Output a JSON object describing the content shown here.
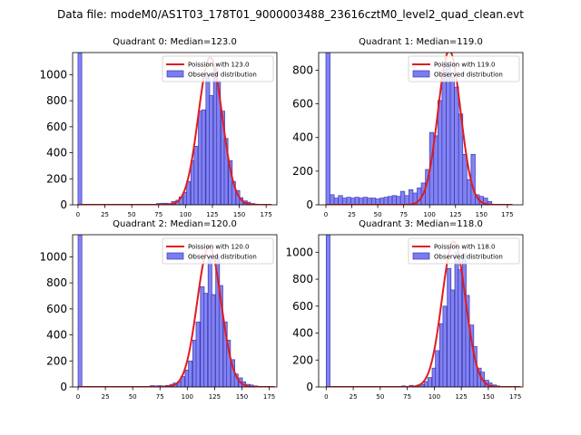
{
  "figure": {
    "suptitle": "Data file: modeM0/AS1T03_178T01_9000003488_23616cztM0_level2_quad_clean.evt"
  },
  "chart_data": [
    {
      "type": "bar",
      "title": "Quadrant 0: Median=123.0",
      "median": 123.0,
      "xlim": [
        -5,
        185
      ],
      "ylim": [
        0,
        1170
      ],
      "xticks": [
        0,
        25,
        50,
        75,
        100,
        125,
        150,
        175
      ],
      "yticks": [
        0,
        200,
        400,
        600,
        800,
        1000
      ],
      "bin_width": 3.5,
      "hist_bins": [
        [
          0,
          1170
        ],
        [
          73,
          10
        ],
        [
          77,
          12
        ],
        [
          80,
          12
        ],
        [
          84,
          10
        ],
        [
          87,
          25
        ],
        [
          91,
          35
        ],
        [
          94,
          60
        ],
        [
          98,
          95
        ],
        [
          101,
          180
        ],
        [
          105,
          340
        ],
        [
          108,
          450
        ],
        [
          112,
          720
        ],
        [
          115,
          730
        ],
        [
          119,
          1000
        ],
        [
          122,
          840
        ],
        [
          126,
          1050
        ],
        [
          129,
          950
        ],
        [
          133,
          720
        ],
        [
          136,
          510
        ],
        [
          140,
          340
        ],
        [
          143,
          180
        ],
        [
          147,
          110
        ],
        [
          150,
          55
        ],
        [
          154,
          30
        ],
        [
          157,
          20
        ],
        [
          161,
          10
        ],
        [
          164,
          5
        ]
      ],
      "legend": [
        {
          "label": "Poission with 123.0",
          "color": "#e41a1c",
          "kind": "line"
        },
        {
          "label": "Observed distribution",
          "color": "#7b7bf2",
          "kind": "patch"
        }
      ]
    },
    {
      "type": "bar",
      "title": "Quadrant 1: Median=119.0",
      "median": 119.0,
      "xlim": [
        -7,
        190
      ],
      "ylim": [
        0,
        905
      ],
      "xticks": [
        0,
        25,
        50,
        75,
        100,
        125,
        150,
        175
      ],
      "yticks": [
        0,
        200,
        400,
        600,
        800
      ],
      "bin_width": 4,
      "hist_bins": [
        [
          0,
          905
        ],
        [
          4,
          60
        ],
        [
          8,
          40
        ],
        [
          12,
          55
        ],
        [
          16,
          40
        ],
        [
          20,
          45
        ],
        [
          24,
          40
        ],
        [
          28,
          45
        ],
        [
          32,
          40
        ],
        [
          36,
          45
        ],
        [
          40,
          40
        ],
        [
          44,
          40
        ],
        [
          48,
          35
        ],
        [
          52,
          40
        ],
        [
          56,
          45
        ],
        [
          60,
          50
        ],
        [
          64,
          55
        ],
        [
          68,
          50
        ],
        [
          72,
          80
        ],
        [
          76,
          55
        ],
        [
          80,
          90
        ],
        [
          84,
          70
        ],
        [
          88,
          100
        ],
        [
          92,
          130
        ],
        [
          96,
          210
        ],
        [
          100,
          430
        ],
        [
          104,
          410
        ],
        [
          108,
          620
        ],
        [
          112,
          800
        ],
        [
          116,
          850
        ],
        [
          120,
          760
        ],
        [
          124,
          700
        ],
        [
          128,
          540
        ],
        [
          132,
          300
        ],
        [
          136,
          150
        ],
        [
          140,
          300
        ],
        [
          144,
          60
        ],
        [
          148,
          50
        ],
        [
          152,
          40
        ],
        [
          156,
          20
        ]
      ],
      "legend": [
        {
          "label": "Poission with 119.0",
          "color": "#e41a1c",
          "kind": "line"
        },
        {
          "label": "Observed distribution",
          "color": "#7b7bf2",
          "kind": "patch"
        }
      ]
    },
    {
      "type": "bar",
      "title": "Quadrant 2: Median=120.0",
      "median": 120.0,
      "xlim": [
        -5,
        182
      ],
      "ylim": [
        0,
        1170
      ],
      "xticks": [
        0,
        25,
        50,
        75,
        100,
        125,
        150,
        175
      ],
      "yticks": [
        0,
        200,
        400,
        600,
        800,
        1000
      ],
      "bin_width": 3.5,
      "hist_bins": [
        [
          0,
          1170
        ],
        [
          66,
          10
        ],
        [
          70,
          8
        ],
        [
          73,
          10
        ],
        [
          77,
          8
        ],
        [
          80,
          12
        ],
        [
          84,
          20
        ],
        [
          87,
          30
        ],
        [
          91,
          40
        ],
        [
          94,
          80
        ],
        [
          98,
          130
        ],
        [
          101,
          200
        ],
        [
          105,
          360
        ],
        [
          108,
          500
        ],
        [
          112,
          770
        ],
        [
          115,
          720
        ],
        [
          119,
          1000
        ],
        [
          122,
          710
        ],
        [
          126,
          1000
        ],
        [
          129,
          780
        ],
        [
          133,
          500
        ],
        [
          136,
          360
        ],
        [
          140,
          210
        ],
        [
          143,
          100
        ],
        [
          147,
          70
        ],
        [
          150,
          40
        ],
        [
          154,
          20
        ],
        [
          157,
          15
        ],
        [
          161,
          8
        ],
        [
          164,
          5
        ]
      ],
      "legend": [
        {
          "label": "Poission with 120.0",
          "color": "#e41a1c",
          "kind": "line"
        },
        {
          "label": "Observed distribution",
          "color": "#7b7bf2",
          "kind": "patch"
        }
      ]
    },
    {
      "type": "bar",
      "title": "Quadrant 3: Median=118.0",
      "median": 118.0,
      "xlim": [
        -7,
        182
      ],
      "ylim": [
        0,
        1130
      ],
      "xticks": [
        0,
        25,
        50,
        75,
        100,
        125,
        150,
        175
      ],
      "yticks": [
        0,
        200,
        400,
        600,
        800,
        1000
      ],
      "bin_width": 3.5,
      "hist_bins": [
        [
          0,
          1130
        ],
        [
          70,
          8
        ],
        [
          77,
          12
        ],
        [
          84,
          15
        ],
        [
          87,
          20
        ],
        [
          91,
          40
        ],
        [
          94,
          70
        ],
        [
          98,
          140
        ],
        [
          101,
          270
        ],
        [
          105,
          470
        ],
        [
          108,
          600
        ],
        [
          112,
          880
        ],
        [
          115,
          720
        ],
        [
          119,
          1000
        ],
        [
          122,
          870
        ],
        [
          126,
          990
        ],
        [
          129,
          680
        ],
        [
          133,
          460
        ],
        [
          136,
          300
        ],
        [
          140,
          140
        ],
        [
          143,
          110
        ],
        [
          147,
          50
        ],
        [
          150,
          30
        ],
        [
          154,
          15
        ],
        [
          157,
          8
        ]
      ],
      "legend": [
        {
          "label": "Poission with 118.0",
          "color": "#e41a1c",
          "kind": "line"
        },
        {
          "label": "Observed distribution",
          "color": "#7b7bf2",
          "kind": "patch"
        }
      ]
    }
  ],
  "colors": {
    "bar_fill": "#7b7bf2",
    "bar_edge": "#3a3ab0",
    "poisson_line": "#e41a1c"
  }
}
